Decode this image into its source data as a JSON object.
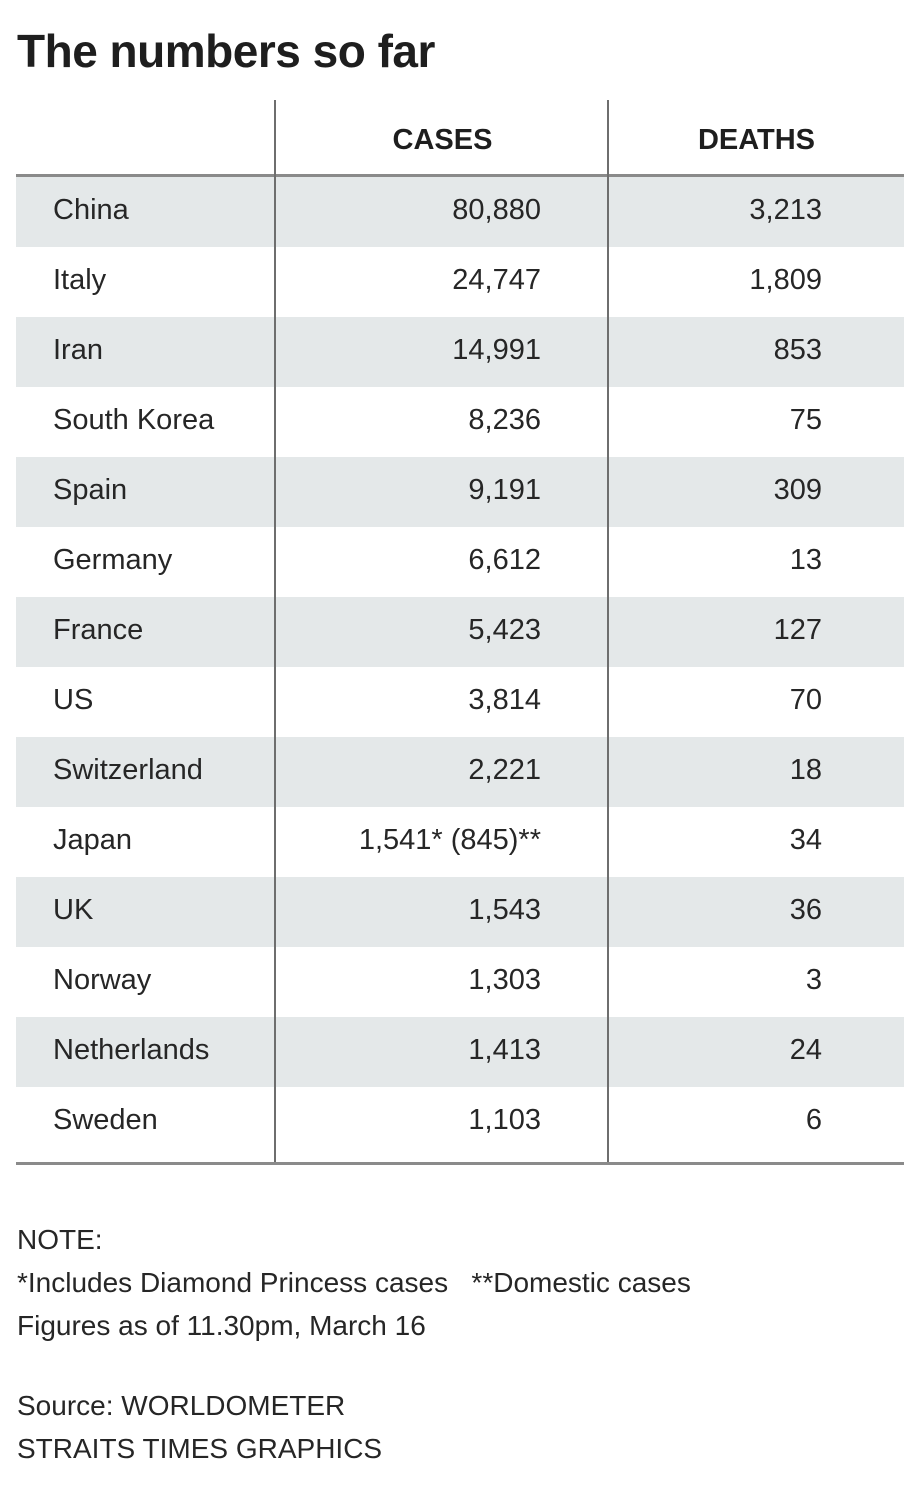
{
  "chart_data": {
    "type": "table",
    "title": "The numbers so far",
    "columns": [
      "",
      "CASES",
      "DEATHS"
    ],
    "rows": [
      {
        "country": "China",
        "cases": "80,880",
        "deaths": "3,213"
      },
      {
        "country": "Italy",
        "cases": "24,747",
        "deaths": "1,809"
      },
      {
        "country": "Iran",
        "cases": "14,991",
        "deaths": "853"
      },
      {
        "country": "South Korea",
        "cases": "8,236",
        "deaths": "75"
      },
      {
        "country": "Spain",
        "cases": "9,191",
        "deaths": "309"
      },
      {
        "country": "Germany",
        "cases": "6,612",
        "deaths": "13"
      },
      {
        "country": "France",
        "cases": "5,423",
        "deaths": "127"
      },
      {
        "country": "US",
        "cases": "3,814",
        "deaths": "70"
      },
      {
        "country": "Switzerland",
        "cases": "2,221",
        "deaths": "18"
      },
      {
        "country": "Japan",
        "cases": "1,541* (845)**",
        "deaths": "34"
      },
      {
        "country": "UK",
        "cases": "1,543",
        "deaths": "36"
      },
      {
        "country": "Norway",
        "cases": "1,303",
        "deaths": "3"
      },
      {
        "country": "Netherlands",
        "cases": "1,413",
        "deaths": "24"
      },
      {
        "country": "Sweden",
        "cases": "1,103",
        "deaths": "6"
      }
    ]
  },
  "notes": {
    "label": "NOTE:",
    "footnotes": "*Includes Diamond Princess cases   **Domestic cases",
    "as_of": "Figures as of 11.30pm, March 16"
  },
  "credits": {
    "source": "Source: WORLDOMETER",
    "graphics": "STRAITS TIMES GRAPHICS"
  },
  "colors": {
    "row_shade": "#e4e8e9",
    "rule": "#8a8a8a",
    "text": "#262626"
  }
}
